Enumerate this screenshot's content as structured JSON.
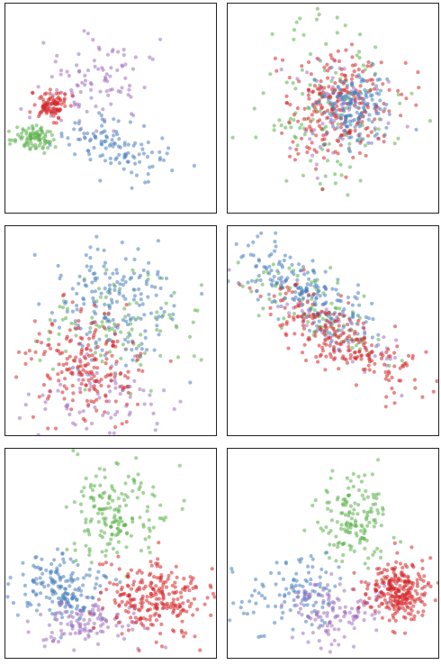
{
  "colors": {
    "red": "#d62728",
    "blue": "#4a80c0",
    "green": "#5bb04a",
    "purple": "#a070c0",
    "frame": "#222222",
    "background": "#ffffff"
  },
  "chart_data": [
    {
      "type": "scatter",
      "title": "",
      "xlabel": "",
      "ylabel": "",
      "xlim": [
        0,
        1
      ],
      "ylim": [
        0,
        1
      ],
      "grid": false,
      "axes_ticks": false,
      "point_alpha": 0.55,
      "clusters": [
        {
          "color": "purple",
          "n": 100,
          "center": [
            0.43,
            0.62
          ],
          "spread": [
            0.14,
            0.1
          ],
          "angle_deg": 38
        },
        {
          "color": "red",
          "n": 95,
          "center": [
            0.22,
            0.52
          ],
          "spread": [
            0.045,
            0.035
          ],
          "angle_deg": 0
        },
        {
          "color": "green",
          "n": 90,
          "center": [
            0.14,
            0.36
          ],
          "spread": [
            0.05,
            0.03
          ],
          "angle_deg": 0
        },
        {
          "color": "blue",
          "n": 110,
          "center": [
            0.52,
            0.32
          ],
          "spread": [
            0.12,
            0.06
          ],
          "angle_deg": -20
        }
      ]
    },
    {
      "type": "scatter",
      "title": "",
      "xlabel": "",
      "ylabel": "",
      "xlim": [
        0,
        1
      ],
      "ylim": [
        0,
        1
      ],
      "grid": false,
      "axes_ticks": false,
      "point_alpha": 0.55,
      "clusters": [
        {
          "color": "green",
          "n": 130,
          "center": [
            0.5,
            0.55
          ],
          "spread": [
            0.2,
            0.2
          ],
          "angle_deg": 0
        },
        {
          "color": "purple",
          "n": 60,
          "center": [
            0.55,
            0.48
          ],
          "spread": [
            0.14,
            0.12
          ],
          "angle_deg": 0
        },
        {
          "color": "red",
          "n": 230,
          "center": [
            0.53,
            0.5
          ],
          "spread": [
            0.13,
            0.15
          ],
          "angle_deg": 0
        },
        {
          "color": "blue",
          "n": 160,
          "center": [
            0.6,
            0.5
          ],
          "spread": [
            0.08,
            0.08
          ],
          "angle_deg": 0
        }
      ]
    },
    {
      "type": "scatter",
      "title": "",
      "xlabel": "",
      "ylabel": "",
      "xlim": [
        0,
        1
      ],
      "ylim": [
        0,
        1
      ],
      "grid": false,
      "axes_ticks": false,
      "point_alpha": 0.55,
      "clusters": [
        {
          "color": "green",
          "n": 100,
          "center": [
            0.55,
            0.5
          ],
          "spread": [
            0.18,
            0.14
          ],
          "angle_deg": 0
        },
        {
          "color": "purple",
          "n": 80,
          "center": [
            0.45,
            0.18
          ],
          "spread": [
            0.15,
            0.1
          ],
          "angle_deg": 0
        },
        {
          "color": "blue",
          "n": 180,
          "center": [
            0.52,
            0.64
          ],
          "spread": [
            0.14,
            0.15
          ],
          "angle_deg": 0
        },
        {
          "color": "red",
          "n": 200,
          "center": [
            0.38,
            0.34
          ],
          "spread": [
            0.14,
            0.13
          ],
          "angle_deg": 0
        }
      ]
    },
    {
      "type": "scatter",
      "title": "",
      "xlabel": "",
      "ylabel": "",
      "xlim": [
        0,
        1
      ],
      "ylim": [
        0,
        1
      ],
      "grid": false,
      "axes_ticks": false,
      "point_alpha": 0.55,
      "clusters": [
        {
          "color": "green",
          "n": 90,
          "center": [
            0.45,
            0.6
          ],
          "spread": [
            0.18,
            0.07
          ],
          "angle_deg": -33
        },
        {
          "color": "purple",
          "n": 60,
          "center": [
            0.52,
            0.5
          ],
          "spread": [
            0.2,
            0.06
          ],
          "angle_deg": -33
        },
        {
          "color": "blue",
          "n": 200,
          "center": [
            0.38,
            0.68
          ],
          "spread": [
            0.17,
            0.07
          ],
          "angle_deg": -33
        },
        {
          "color": "red",
          "n": 220,
          "center": [
            0.55,
            0.45
          ],
          "spread": [
            0.2,
            0.07
          ],
          "angle_deg": -33
        }
      ]
    },
    {
      "type": "scatter",
      "title": "",
      "xlabel": "",
      "ylabel": "",
      "xlim": [
        0,
        1
      ],
      "ylim": [
        0,
        1
      ],
      "grid": false,
      "axes_ticks": false,
      "point_alpha": 0.55,
      "clusters": [
        {
          "color": "green",
          "n": 170,
          "center": [
            0.52,
            0.68
          ],
          "spread": [
            0.11,
            0.12
          ],
          "angle_deg": 0
        },
        {
          "color": "blue",
          "n": 180,
          "center": [
            0.26,
            0.35
          ],
          "spread": [
            0.11,
            0.08
          ],
          "angle_deg": 0
        },
        {
          "color": "purple",
          "n": 110,
          "center": [
            0.42,
            0.17
          ],
          "spread": [
            0.12,
            0.06
          ],
          "angle_deg": 0
        },
        {
          "color": "red",
          "n": 250,
          "center": [
            0.7,
            0.28
          ],
          "spread": [
            0.12,
            0.09
          ],
          "angle_deg": 0
        }
      ]
    },
    {
      "type": "scatter",
      "title": "",
      "xlabel": "",
      "ylabel": "",
      "xlim": [
        0,
        1
      ],
      "ylim": [
        0,
        1
      ],
      "grid": false,
      "axes_ticks": false,
      "point_alpha": 0.55,
      "clusters": [
        {
          "color": "green",
          "n": 150,
          "center": [
            0.6,
            0.66
          ],
          "spread": [
            0.08,
            0.11
          ],
          "angle_deg": 0
        },
        {
          "color": "blue",
          "n": 120,
          "center": [
            0.3,
            0.3
          ],
          "spread": [
            0.14,
            0.09
          ],
          "angle_deg": 0
        },
        {
          "color": "purple",
          "n": 120,
          "center": [
            0.5,
            0.22
          ],
          "spread": [
            0.1,
            0.07
          ],
          "angle_deg": 0
        },
        {
          "color": "red",
          "n": 260,
          "center": [
            0.81,
            0.32
          ],
          "spread": [
            0.08,
            0.08
          ],
          "angle_deg": 0
        }
      ]
    }
  ]
}
